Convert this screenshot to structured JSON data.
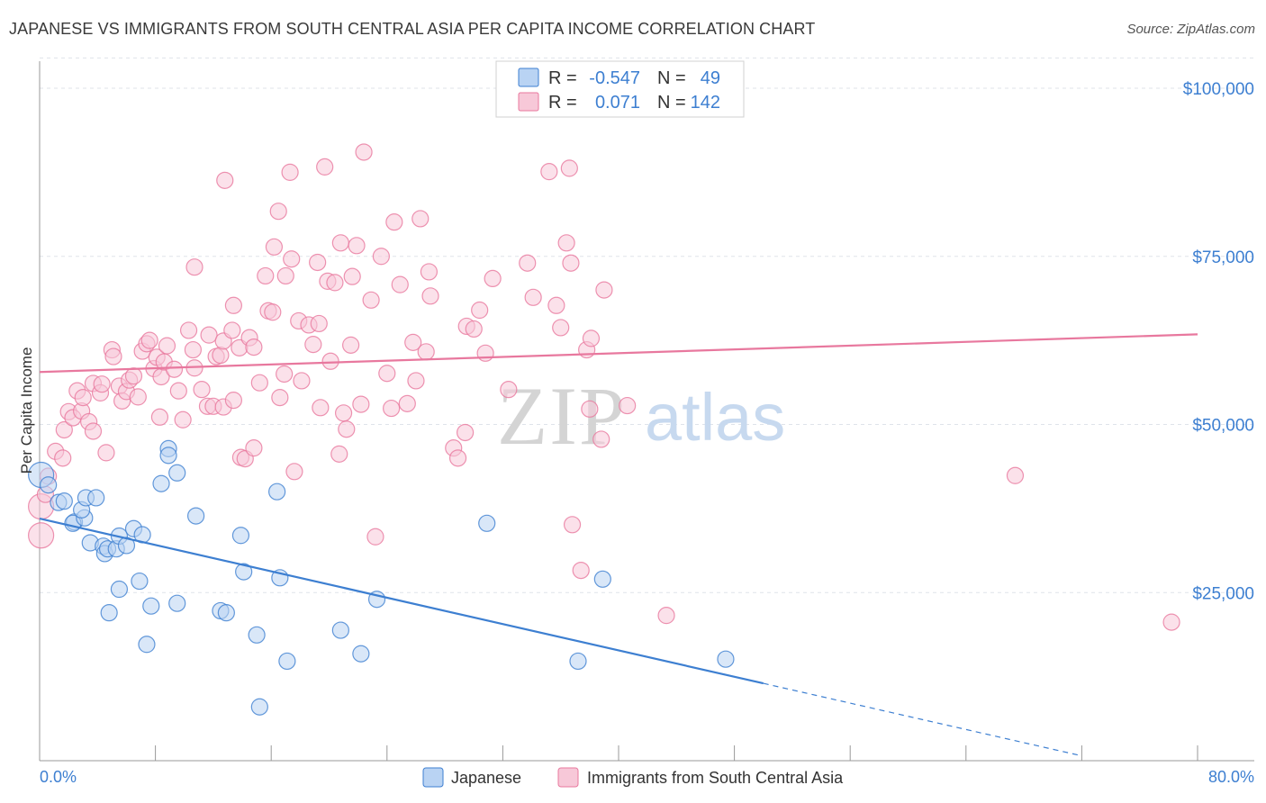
{
  "title": "JAPANESE VS IMMIGRANTS FROM SOUTH CENTRAL ASIA PER CAPITA INCOME CORRELATION CHART",
  "source": "Source: ZipAtlas.com",
  "watermark": {
    "zip": "ZIP",
    "atlas": "atlas"
  },
  "colors": {
    "blue": "#3d7fd1",
    "pink": "#e8789e",
    "blue_fill": "#b9d3f3",
    "pink_fill": "#f7c8d8",
    "grid": "#dfe3ea"
  },
  "stats": [
    {
      "series": "Japanese",
      "r_label": "R =",
      "r_value": "-0.547",
      "n_label": "N =",
      "n_value": "49"
    },
    {
      "series": "Immigrants from South Central Asia",
      "r_label": "R =",
      "r_value": "0.071",
      "n_label": "N =",
      "n_value": "142"
    }
  ],
  "chart_data": {
    "type": "scatter",
    "title": "JAPANESE VS IMMIGRANTS FROM SOUTH CENTRAL ASIA PER CAPITA INCOME CORRELATION CHART",
    "xlabel": "",
    "ylabel": "Per Capita Income",
    "xlim": [
      0,
      80
    ],
    "ylim": [
      0,
      105000
    ],
    "x_tick_labels": [
      "0.0%",
      "80.0%"
    ],
    "y_ticks": [
      25000,
      50000,
      75000,
      100000
    ],
    "y_tick_labels": [
      "$25,000",
      "$50,000",
      "$75,000",
      "$100,000"
    ],
    "grid": true,
    "legend_position": "bottom-center",
    "series": [
      {
        "name": "Japanese",
        "color": "#3d7fd1",
        "trend": {
          "x0": 0,
          "y0": 36000,
          "x1": 50,
          "y1": 11500,
          "dashed_to_x": 72
        },
        "points": [
          [
            0.1,
            42500
          ],
          [
            0.6,
            41000
          ],
          [
            1.3,
            38400
          ],
          [
            1.7,
            38600
          ],
          [
            2.4,
            35500
          ],
          [
            2.3,
            35300
          ],
          [
            3.1,
            36100
          ],
          [
            2.9,
            37300
          ],
          [
            3.2,
            39100
          ],
          [
            3.9,
            39100
          ],
          [
            3.5,
            32400
          ],
          [
            4.4,
            31900
          ],
          [
            4.5,
            30800
          ],
          [
            4.7,
            31500
          ],
          [
            5.3,
            31500
          ],
          [
            5.5,
            33400
          ],
          [
            6.0,
            32000
          ],
          [
            6.5,
            34500
          ],
          [
            7.1,
            33600
          ],
          [
            5.5,
            25500
          ],
          [
            4.8,
            22000
          ],
          [
            6.9,
            26700
          ],
          [
            7.7,
            23000
          ],
          [
            7.4,
            17300
          ],
          [
            9.5,
            23400
          ],
          [
            8.4,
            41200
          ],
          [
            8.9,
            46400
          ],
          [
            8.9,
            45400
          ],
          [
            9.5,
            42800
          ],
          [
            10.8,
            36400
          ],
          [
            12.5,
            22300
          ],
          [
            12.9,
            22000
          ],
          [
            13.9,
            33500
          ],
          [
            14.1,
            28100
          ],
          [
            15.0,
            18700
          ],
          [
            16.4,
            40000
          ],
          [
            16.6,
            27200
          ],
          [
            17.1,
            14800
          ],
          [
            20.8,
            19400
          ],
          [
            22.2,
            15900
          ],
          [
            23.3,
            24000
          ],
          [
            30.9,
            35300
          ],
          [
            37.2,
            14800
          ],
          [
            38.9,
            27000
          ],
          [
            47.4,
            15100
          ],
          [
            15.2,
            8000
          ]
        ]
      },
      {
        "name": "Immigrants from South Central Asia",
        "color": "#e8789e",
        "trend": {
          "x0": 0,
          "y0": 57800,
          "x1": 80,
          "y1": 63400
        },
        "points": [
          [
            0.1,
            37800
          ],
          [
            0.1,
            33500
          ],
          [
            0.4,
            39600
          ],
          [
            0.6,
            42300
          ],
          [
            1.1,
            46000
          ],
          [
            1.7,
            49200
          ],
          [
            1.6,
            45000
          ],
          [
            2.0,
            51900
          ],
          [
            2.3,
            51000
          ],
          [
            2.6,
            55000
          ],
          [
            2.9,
            52000
          ],
          [
            3.0,
            54000
          ],
          [
            3.4,
            50400
          ],
          [
            3.7,
            49000
          ],
          [
            3.7,
            56100
          ],
          [
            4.2,
            54700
          ],
          [
            4.3,
            56000
          ],
          [
            4.6,
            45800
          ],
          [
            5.0,
            61100
          ],
          [
            5.1,
            60100
          ],
          [
            5.5,
            55700
          ],
          [
            5.7,
            53500
          ],
          [
            6.0,
            54900
          ],
          [
            6.2,
            56600
          ],
          [
            6.5,
            57200
          ],
          [
            6.8,
            54100
          ],
          [
            7.1,
            60900
          ],
          [
            7.4,
            62000
          ],
          [
            7.6,
            62500
          ],
          [
            7.9,
            58300
          ],
          [
            8.1,
            60000
          ],
          [
            8.3,
            51100
          ],
          [
            8.4,
            57100
          ],
          [
            8.6,
            59300
          ],
          [
            8.8,
            61700
          ],
          [
            9.3,
            58200
          ],
          [
            9.6,
            55000
          ],
          [
            9.9,
            50700
          ],
          [
            10.3,
            64000
          ],
          [
            10.6,
            61100
          ],
          [
            10.7,
            58400
          ],
          [
            10.7,
            73400
          ],
          [
            11.2,
            55200
          ],
          [
            11.6,
            52700
          ],
          [
            11.7,
            63300
          ],
          [
            12.0,
            52700
          ],
          [
            12.2,
            60100
          ],
          [
            12.5,
            60300
          ],
          [
            12.7,
            62400
          ],
          [
            12.7,
            52600
          ],
          [
            12.8,
            86300
          ],
          [
            13.3,
            64000
          ],
          [
            13.4,
            67700
          ],
          [
            13.4,
            53600
          ],
          [
            13.8,
            61400
          ],
          [
            13.9,
            45100
          ],
          [
            14.2,
            44900
          ],
          [
            14.5,
            62900
          ],
          [
            14.8,
            61500
          ],
          [
            14.8,
            46500
          ],
          [
            15.2,
            56200
          ],
          [
            15.6,
            72100
          ],
          [
            15.8,
            66900
          ],
          [
            16.1,
            66700
          ],
          [
            16.2,
            76400
          ],
          [
            16.5,
            81700
          ],
          [
            16.6,
            54000
          ],
          [
            16.9,
            57500
          ],
          [
            17.0,
            72100
          ],
          [
            17.3,
            87500
          ],
          [
            17.4,
            74600
          ],
          [
            17.6,
            43000
          ],
          [
            17.9,
            65400
          ],
          [
            18.1,
            56500
          ],
          [
            18.6,
            64800
          ],
          [
            18.9,
            61900
          ],
          [
            19.2,
            74100
          ],
          [
            19.3,
            65000
          ],
          [
            19.4,
            52500
          ],
          [
            19.7,
            88300
          ],
          [
            19.9,
            71300
          ],
          [
            20.1,
            59400
          ],
          [
            20.4,
            71100
          ],
          [
            20.8,
            77000
          ],
          [
            20.7,
            45600
          ],
          [
            21.0,
            51700
          ],
          [
            21.2,
            49300
          ],
          [
            21.5,
            61800
          ],
          [
            21.6,
            72000
          ],
          [
            21.9,
            76600
          ],
          [
            22.2,
            53000
          ],
          [
            22.4,
            90500
          ],
          [
            22.9,
            68500
          ],
          [
            23.2,
            33300
          ],
          [
            23.6,
            75000
          ],
          [
            24.0,
            57600
          ],
          [
            24.3,
            52400
          ],
          [
            24.5,
            80100
          ],
          [
            24.9,
            70800
          ],
          [
            25.4,
            53100
          ],
          [
            25.8,
            62200
          ],
          [
            26.0,
            56500
          ],
          [
            26.3,
            80600
          ],
          [
            26.7,
            60800
          ],
          [
            26.9,
            72700
          ],
          [
            27.0,
            69100
          ],
          [
            28.6,
            46500
          ],
          [
            28.9,
            45000
          ],
          [
            29.4,
            48800
          ],
          [
            29.5,
            64600
          ],
          [
            30.0,
            64200
          ],
          [
            30.4,
            67000
          ],
          [
            30.8,
            60600
          ],
          [
            31.3,
            71700
          ],
          [
            32.4,
            55200
          ],
          [
            33.7,
            74000
          ],
          [
            34.1,
            68900
          ],
          [
            35.2,
            87600
          ],
          [
            35.7,
            67700
          ],
          [
            36.0,
            64400
          ],
          [
            36.4,
            77000
          ],
          [
            36.6,
            88100
          ],
          [
            36.7,
            74000
          ],
          [
            36.8,
            35100
          ],
          [
            37.8,
            61100
          ],
          [
            38.1,
            62800
          ],
          [
            37.4,
            28300
          ],
          [
            38.0,
            52300
          ],
          [
            39.0,
            70000
          ],
          [
            40.6,
            52800
          ],
          [
            38.8,
            47800
          ],
          [
            43.3,
            21600
          ],
          [
            67.4,
            42400
          ],
          [
            78.2,
            20600
          ]
        ]
      }
    ]
  }
}
